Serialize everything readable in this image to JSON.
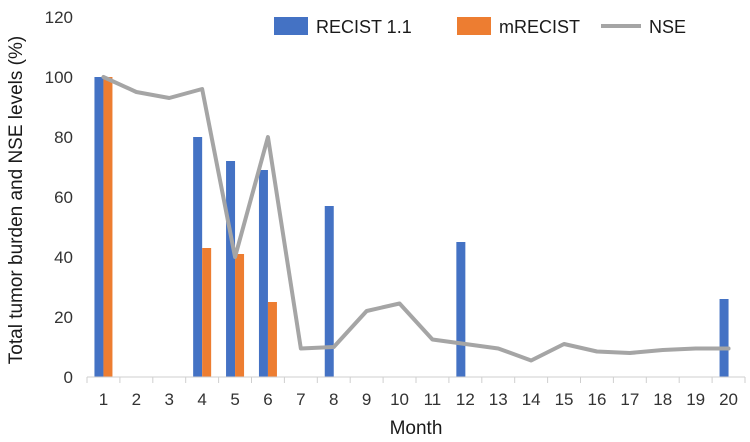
{
  "chart_data": {
    "type": "bar",
    "title": "",
    "xlabel": "Month",
    "ylabel": "Total tumor burden and NSE levels (%)",
    "ylim": [
      0,
      120
    ],
    "yticks": [
      0,
      20,
      40,
      60,
      80,
      100,
      120
    ],
    "grid": false,
    "legend_position": "top-right",
    "categories": [
      "1",
      "2",
      "3",
      "4",
      "5",
      "6",
      "7",
      "8",
      "9",
      "10",
      "11",
      "12",
      "13",
      "14",
      "15",
      "16",
      "17",
      "18",
      "19",
      "20"
    ],
    "series": [
      {
        "name": "RECIST 1.1",
        "kind": "bar",
        "color": "#4472C4",
        "values": [
          100,
          null,
          null,
          80,
          72,
          69,
          null,
          57,
          null,
          null,
          null,
          45,
          null,
          null,
          null,
          null,
          null,
          null,
          null,
          26
        ]
      },
      {
        "name": "mRECIST",
        "kind": "bar",
        "color": "#ED7D31",
        "values": [
          100,
          null,
          null,
          43,
          41,
          25,
          null,
          null,
          null,
          null,
          null,
          null,
          null,
          null,
          null,
          null,
          null,
          null,
          null,
          null
        ]
      },
      {
        "name": "NSE",
        "kind": "line",
        "color": "#A5A5A5",
        "values": [
          100,
          95,
          93,
          96,
          40,
          80,
          9.5,
          10,
          22,
          24.5,
          12.5,
          11,
          9.5,
          5.5,
          11,
          8.5,
          8,
          9,
          9.5,
          9.5
        ]
      }
    ]
  }
}
